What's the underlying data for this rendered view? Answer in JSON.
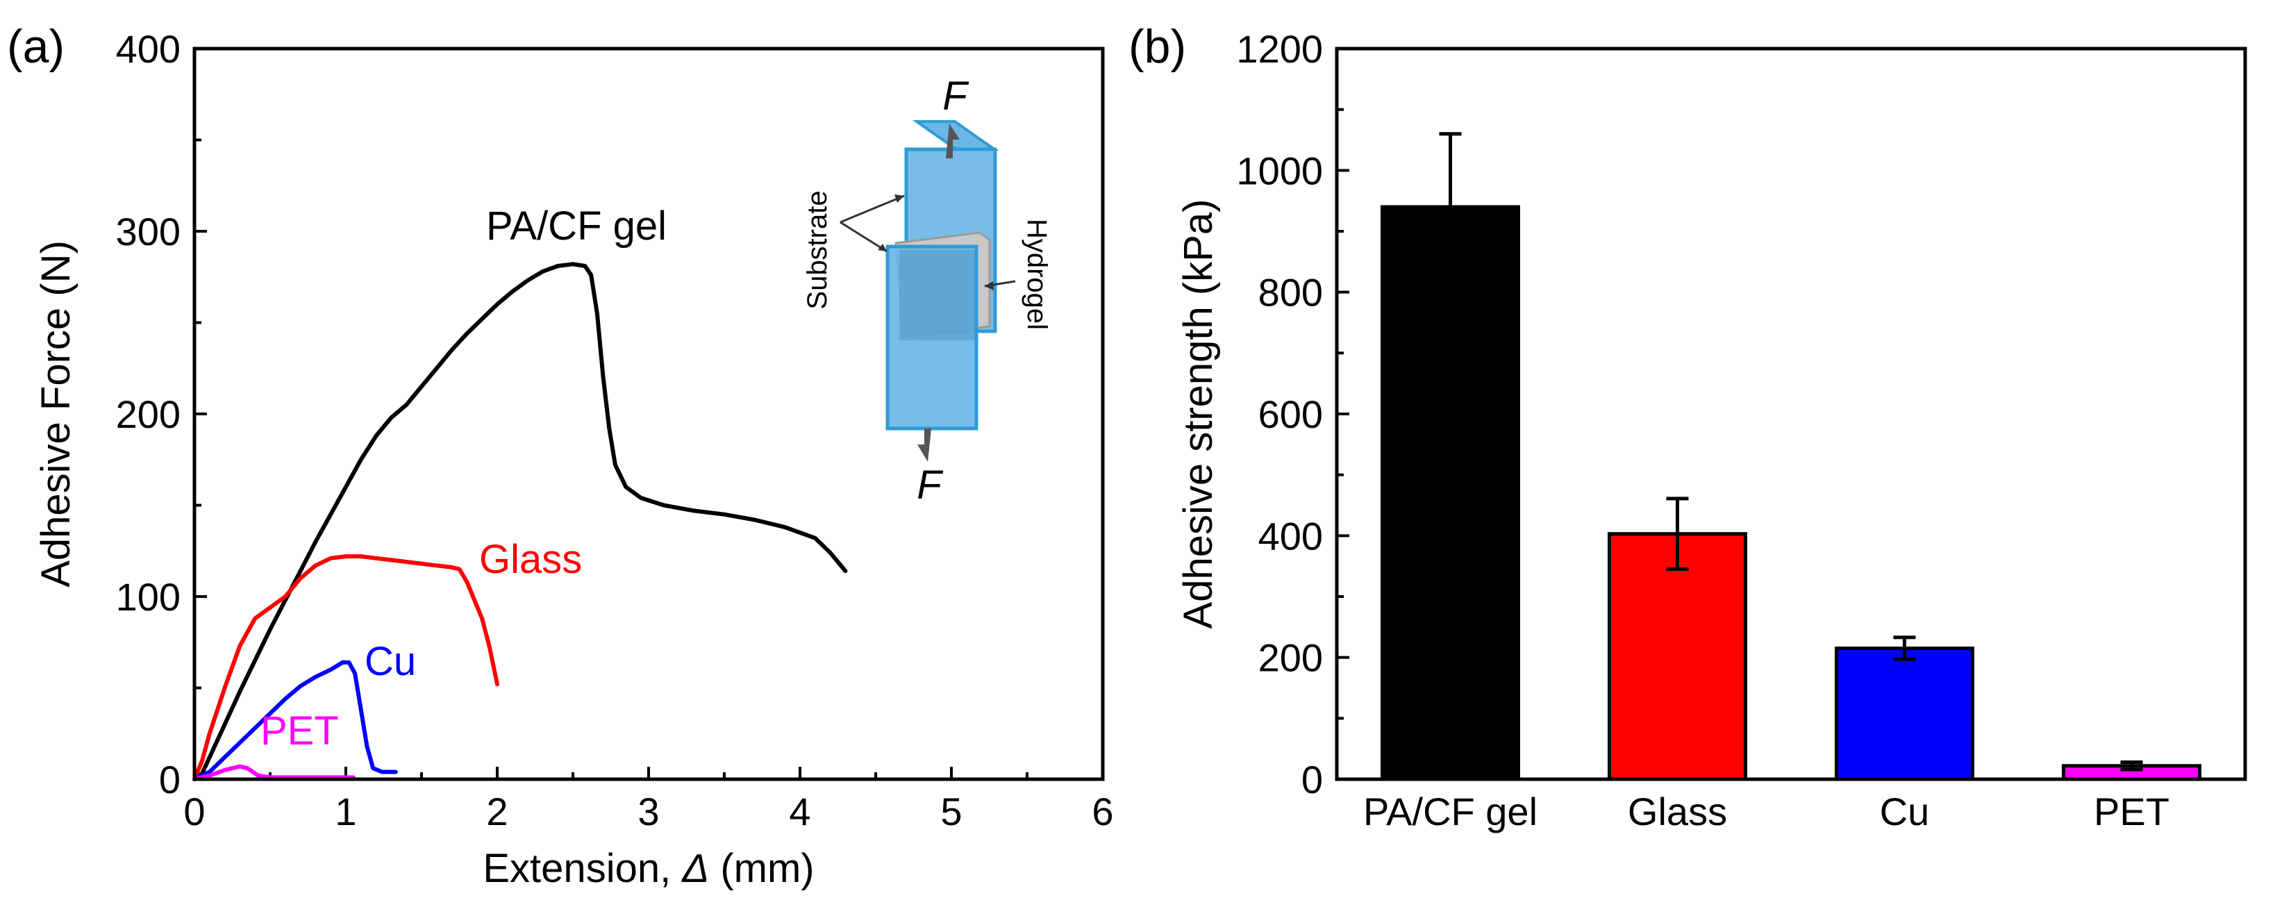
{
  "chart_data": [
    {
      "type": "line",
      "panel_label": "(a)",
      "xlabel": "Extension, ",
      "xlabel_symbol": "Δ",
      "xlabel_unit": " (mm)",
      "ylabel": "Adhesive Force (N)",
      "xlim": [
        0,
        6
      ],
      "ylim": [
        0,
        400
      ],
      "xticks": [
        "0",
        "1",
        "2",
        "3",
        "4",
        "5",
        "6"
      ],
      "yticks": [
        "0",
        "100",
        "200",
        "300",
        "400"
      ],
      "series": [
        {
          "name": "PA/CF gel",
          "color": "#000000",
          "points": [
            [
              0,
              0
            ],
            [
              0.05,
              3
            ],
            [
              0.1,
              12
            ],
            [
              0.2,
              30
            ],
            [
              0.3,
              48
            ],
            [
              0.4,
              65
            ],
            [
              0.5,
              82
            ],
            [
              0.6,
              98
            ],
            [
              0.7,
              114
            ],
            [
              0.8,
              130
            ],
            [
              0.9,
              145
            ],
            [
              1.0,
              160
            ],
            [
              1.1,
              175
            ],
            [
              1.2,
              188
            ],
            [
              1.3,
              198
            ],
            [
              1.4,
              205
            ],
            [
              1.5,
              215
            ],
            [
              1.6,
              225
            ],
            [
              1.7,
              235
            ],
            [
              1.8,
              244
            ],
            [
              1.9,
              252
            ],
            [
              2.0,
              260
            ],
            [
              2.1,
              267
            ],
            [
              2.2,
              273
            ],
            [
              2.3,
              278
            ],
            [
              2.4,
              281
            ],
            [
              2.5,
              282
            ],
            [
              2.58,
              281
            ],
            [
              2.62,
              276
            ],
            [
              2.66,
              255
            ],
            [
              2.7,
              220
            ],
            [
              2.74,
              192
            ],
            [
              2.78,
              172
            ],
            [
              2.85,
              160
            ],
            [
              2.95,
              154
            ],
            [
              3.1,
              150
            ],
            [
              3.3,
              147
            ],
            [
              3.5,
              145
            ],
            [
              3.7,
              142
            ],
            [
              3.9,
              138
            ],
            [
              4.1,
              132
            ],
            [
              4.2,
              124
            ],
            [
              4.3,
              114
            ]
          ]
        },
        {
          "name": "Glass",
          "color": "#ff0000",
          "points": [
            [
              0,
              0
            ],
            [
              0.05,
              10
            ],
            [
              0.1,
              25
            ],
            [
              0.2,
              50
            ],
            [
              0.3,
              73
            ],
            [
              0.4,
              88
            ],
            [
              0.5,
              94
            ],
            [
              0.6,
              100
            ],
            [
              0.7,
              110
            ],
            [
              0.8,
              117
            ],
            [
              0.9,
              121
            ],
            [
              1.0,
              122
            ],
            [
              1.1,
              122
            ],
            [
              1.2,
              121
            ],
            [
              1.3,
              120
            ],
            [
              1.4,
              119
            ],
            [
              1.5,
              118
            ],
            [
              1.6,
              117
            ],
            [
              1.7,
              116
            ],
            [
              1.75,
              115
            ],
            [
              1.8,
              108
            ],
            [
              1.85,
              98
            ],
            [
              1.9,
              88
            ],
            [
              1.95,
              72
            ],
            [
              2.0,
              52
            ]
          ]
        },
        {
          "name": "Cu",
          "color": "#0000ff",
          "points": [
            [
              0,
              0
            ],
            [
              0.1,
              4
            ],
            [
              0.2,
              12
            ],
            [
              0.3,
              20
            ],
            [
              0.4,
              28
            ],
            [
              0.5,
              36
            ],
            [
              0.6,
              44
            ],
            [
              0.7,
              51
            ],
            [
              0.8,
              56
            ],
            [
              0.9,
              60
            ],
            [
              0.98,
              64
            ],
            [
              1.02,
              64
            ],
            [
              1.06,
              58
            ],
            [
              1.1,
              38
            ],
            [
              1.14,
              18
            ],
            [
              1.18,
              6
            ],
            [
              1.24,
              4
            ],
            [
              1.33,
              4
            ]
          ]
        },
        {
          "name": "PET",
          "color": "#ff00ff",
          "points": [
            [
              0,
              0
            ],
            [
              0.1,
              2
            ],
            [
              0.2,
              5
            ],
            [
              0.3,
              7
            ],
            [
              0.35,
              6
            ],
            [
              0.42,
              2
            ],
            [
              0.5,
              1
            ],
            [
              0.7,
              1
            ],
            [
              0.9,
              1
            ],
            [
              1.05,
              1
            ]
          ]
        }
      ],
      "inset": {
        "force_label_top": "F",
        "force_label_bottom": "F",
        "substrate_label": "Substrate",
        "hydrogel_label": "Hydrogel"
      }
    },
    {
      "type": "bar",
      "panel_label": "(b)",
      "xlabel": "",
      "ylabel": "Adhesive strength (kPa)",
      "ylim": [
        0,
        1200
      ],
      "yticks": [
        "0",
        "200",
        "400",
        "600",
        "800",
        "1000",
        "1200"
      ],
      "categories": [
        "PA/CF gel",
        "Glass",
        "Cu",
        "PET"
      ],
      "values": [
        940,
        403,
        215,
        22
      ],
      "errors": [
        120,
        58,
        18,
        6
      ],
      "colors": [
        "#000000",
        "#ff0000",
        "#0000ff",
        "#ff00ff"
      ]
    }
  ]
}
